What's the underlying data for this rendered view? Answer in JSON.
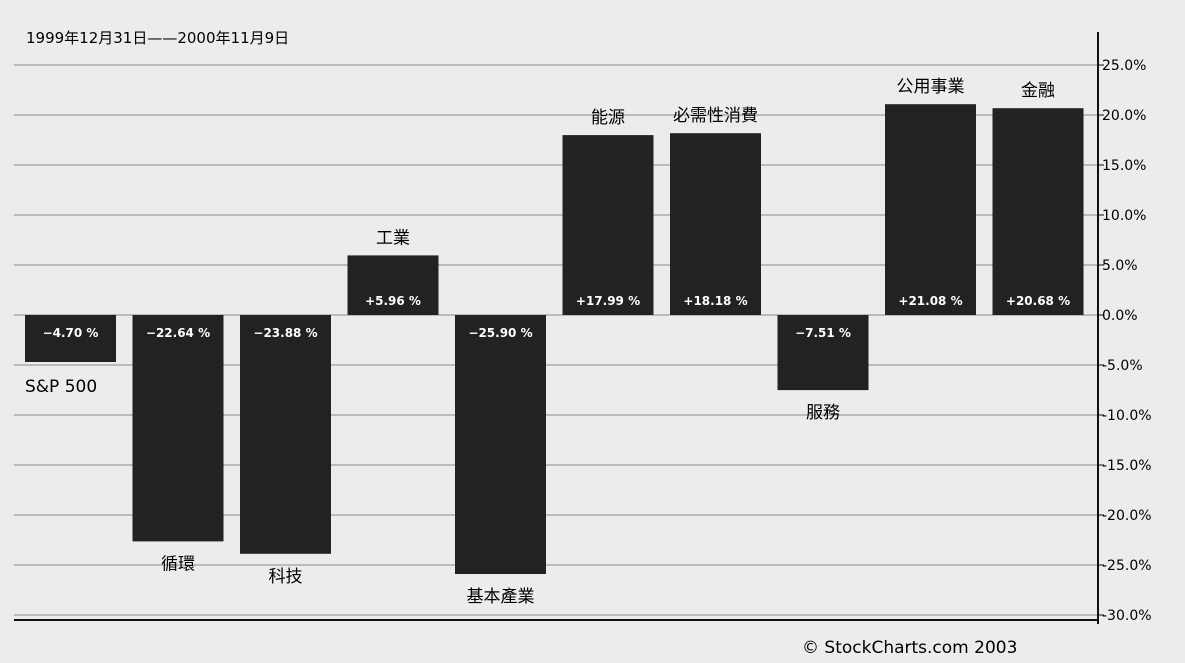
{
  "header": {
    "date_range": "1999年12月31日——2000年11月9日"
  },
  "footer": {
    "credit": "© StockCharts.com 2003"
  },
  "chart_data": {
    "type": "bar",
    "title": "1999年12月31日——2000年11月9日",
    "xlabel": "",
    "ylabel": "",
    "ylim": [
      -30,
      25
    ],
    "yticks": [
      25,
      20,
      15,
      10,
      5,
      0,
      -5,
      -10,
      -15,
      -20,
      -25,
      -30
    ],
    "ytick_labels": [
      "25.0%",
      "20.0%",
      "15.0%",
      "10.0%",
      "5.0%",
      "0.0%",
      "-5.0%",
      "-10.0%",
      "-15.0%",
      "-20.0%",
      "-25.0%",
      "-30.0%"
    ],
    "grid": true,
    "y_axis_position": "right",
    "bar_color": "#222222",
    "categories": [
      "S&P 500",
      "循環",
      "科技",
      "工業",
      "基本產業",
      "能源",
      "必需性消費",
      "服務",
      "公用事業",
      "金融"
    ],
    "values": [
      -4.7,
      -22.64,
      -23.88,
      5.96,
      -25.9,
      17.99,
      18.18,
      -7.51,
      21.08,
      20.68
    ],
    "value_labels": [
      "−4.70 %",
      "−22.64 %",
      "−23.88 %",
      "+5.96 %",
      "−25.90 %",
      "+17.99 %",
      "+18.18 %",
      "−7.51 %",
      "+21.08 %",
      "+20.68 %"
    ]
  }
}
